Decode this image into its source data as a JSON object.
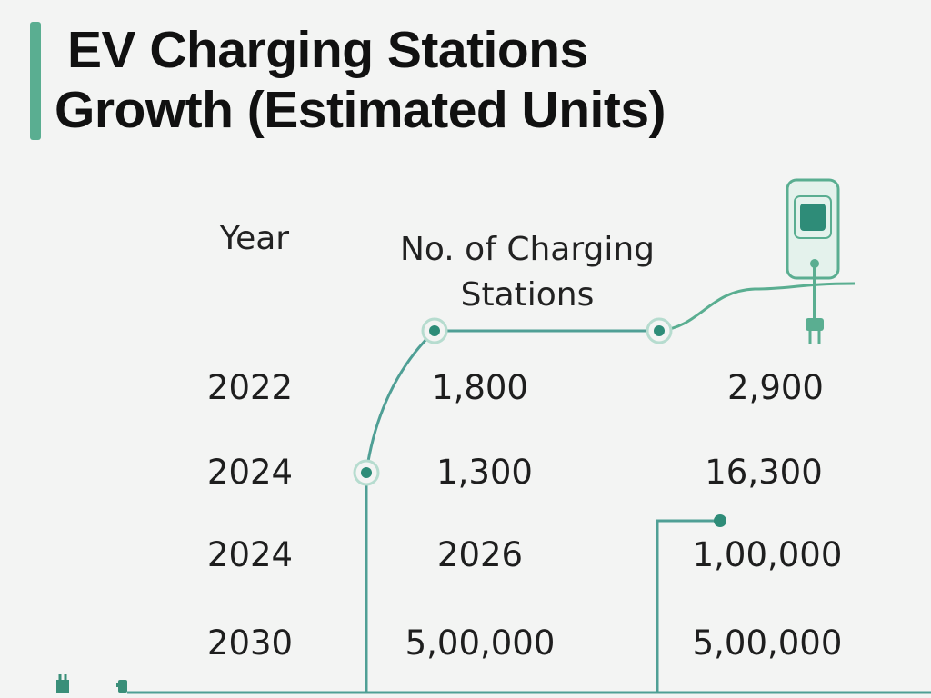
{
  "title": {
    "line1": "EV Charging Stations",
    "line2": "Growth (Estimated Units)"
  },
  "table": {
    "headers": {
      "year": "Year",
      "stations": "No. of Charging Stations"
    },
    "rows": [
      {
        "year": "2022",
        "col2": "1,800",
        "col3": "2,900"
      },
      {
        "year": "2024",
        "col2": "1,300",
        "col3": "16,300"
      },
      {
        "year": "2024",
        "col2": "2026",
        "col3": "1,00,000"
      },
      {
        "year": "2030",
        "col2": "5,00,000",
        "col3": "5,00,000"
      }
    ]
  },
  "icons": [
    "charging-station-icon",
    "plug-icon"
  ],
  "colors": {
    "accent": "#5aae91",
    "line": "#4f9f95",
    "dot": "#2e8c78"
  }
}
